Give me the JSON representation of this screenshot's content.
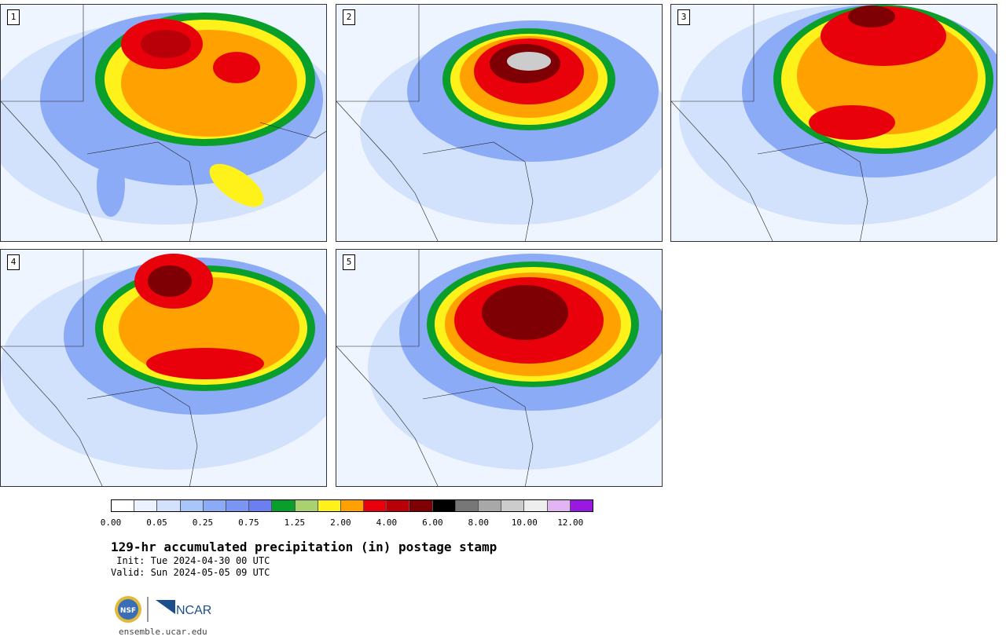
{
  "panels": [
    {
      "label": "1"
    },
    {
      "label": "2"
    },
    {
      "label": "3"
    },
    {
      "label": "4"
    },
    {
      "label": "5"
    }
  ],
  "colorbar": {
    "colors": [
      "#ffffff",
      "#eaf3ff",
      "#d2e2fc",
      "#a9c6fa",
      "#8cabf7",
      "#7b95f2",
      "#6b7ff0",
      "#0a9f2a",
      "#aad170",
      "#fff21a",
      "#ffa100",
      "#e8000b",
      "#b90008",
      "#7e0005",
      "#000000",
      "#777777",
      "#a8a8a8",
      "#cccccc",
      "#eeeeee",
      "#e3b4f4",
      "#9a19e0"
    ],
    "tick_labels": [
      "0.00",
      "0.05",
      "0.25",
      "0.75",
      "1.25",
      "2.00",
      "4.00",
      "6.00",
      "8.00",
      "10.00",
      "12.00"
    ]
  },
  "title": "129-hr accumulated precipitation (in) postage stamp",
  "init_line": " Init: Tue 2024-04-30 00 UTC",
  "valid_line": "Valid: Sun 2024-05-05 09 UTC",
  "logos": {
    "nsf": "NSF",
    "ncar": "NCAR"
  },
  "url": "ensemble.ucar.edu"
}
